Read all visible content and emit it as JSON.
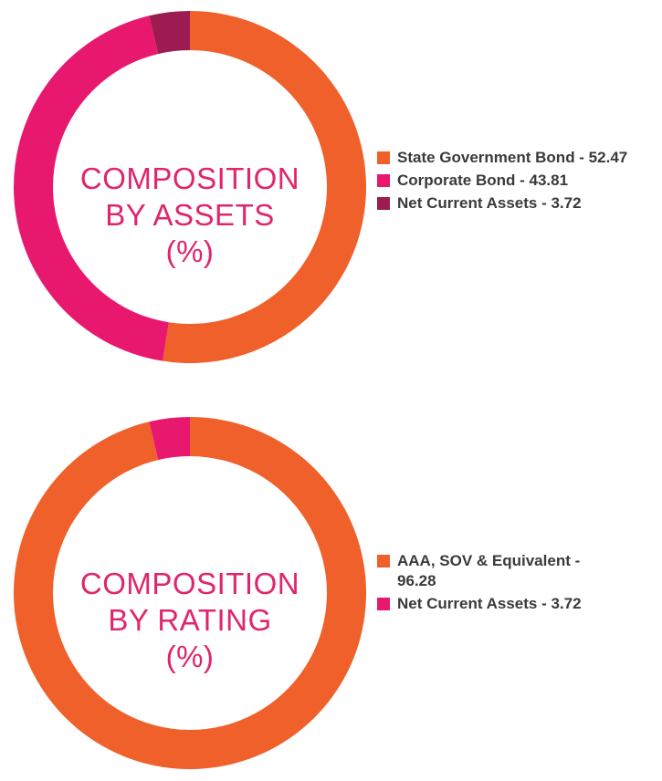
{
  "chart_data": [
    {
      "type": "pie",
      "title": "COMPOSITION BY ASSETS (%)",
      "title_lines": [
        "COMPOSITION",
        "BY ASSETS",
        "(%)"
      ],
      "legend_position": "right",
      "series": [
        {
          "name": "State Government Bond",
          "value": 52.47,
          "color": "#f0602a",
          "label": "State Government Bond - 52.47"
        },
        {
          "name": "Corporate Bond",
          "value": 43.81,
          "color": "#e8186f",
          "label": "Corporate Bond - 43.81"
        },
        {
          "name": "Net Current Assets",
          "value": 3.72,
          "color": "#9c1b51",
          "label": "Net Current Assets - 3.72"
        }
      ]
    },
    {
      "type": "pie",
      "title": "COMPOSITION BY RATING (%)",
      "title_lines": [
        "COMPOSITION",
        "BY RATING",
        "(%)"
      ],
      "legend_position": "right",
      "series": [
        {
          "name": "AAA, SOV & Equivalent",
          "value": 96.28,
          "color": "#f0602a",
          "label": "AAA, SOV & Equivalent - 96.28"
        },
        {
          "name": "Net Current Assets",
          "value": 3.72,
          "color": "#e8186f",
          "label": "Net Current Assets - 3.72"
        }
      ]
    }
  ]
}
